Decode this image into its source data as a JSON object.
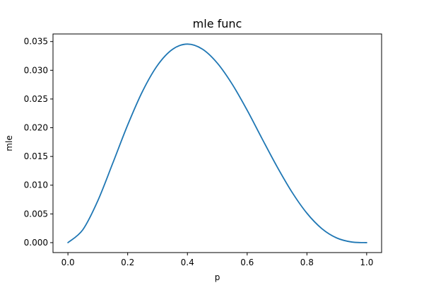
{
  "chart_data": {
    "type": "line",
    "title": "mle func",
    "xlabel": "p",
    "ylabel": "mle",
    "xlim": [
      -0.05,
      1.05
    ],
    "ylim": [
      -0.00173,
      0.03632
    ],
    "xticks": [
      0.0,
      0.2,
      0.4,
      0.6,
      0.8,
      1.0
    ],
    "xtick_labels": [
      "0.0",
      "0.2",
      "0.4",
      "0.6",
      "0.8",
      "1.0"
    ],
    "yticks": [
      0.0,
      0.005,
      0.01,
      0.015,
      0.02,
      0.025,
      0.03,
      0.035
    ],
    "ytick_labels": [
      "0.000",
      "0.005",
      "0.010",
      "0.015",
      "0.020",
      "0.025",
      "0.030",
      "0.035"
    ],
    "grid": false,
    "series": [
      {
        "color": "#1f77b4",
        "x": [
          0.0,
          0.05,
          0.1,
          0.15,
          0.2,
          0.25,
          0.3,
          0.35,
          0.4,
          0.45,
          0.5,
          0.55,
          0.6,
          0.65,
          0.7,
          0.75,
          0.8,
          0.85,
          0.9,
          0.95,
          1.0
        ],
        "y": [
          0.0,
          0.00226,
          0.00729,
          0.01382,
          0.02048,
          0.02637,
          0.03087,
          0.03364,
          0.03456,
          0.03369,
          0.03125,
          0.02757,
          0.02304,
          0.01808,
          0.01323,
          0.00879,
          0.00512,
          0.00244,
          0.00081,
          0.00011,
          0.0
        ]
      }
    ]
  }
}
